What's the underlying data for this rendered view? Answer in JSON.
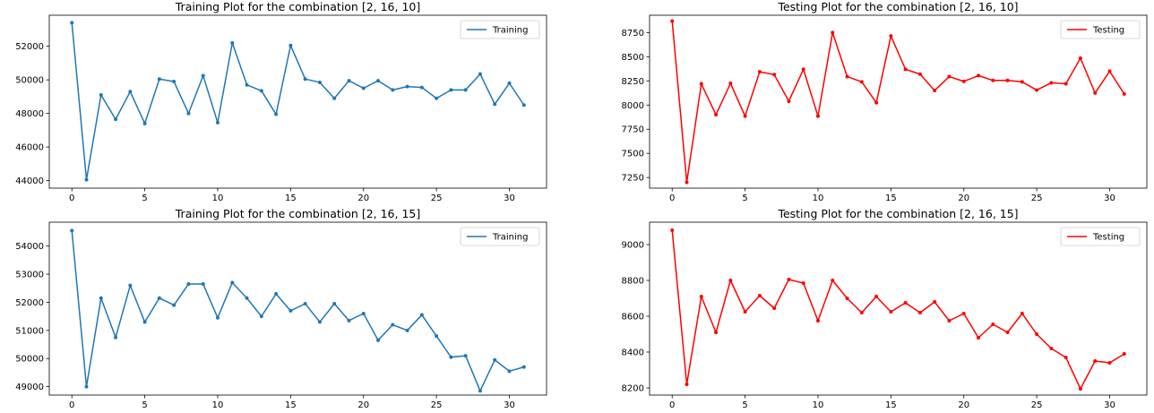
{
  "chart_data": [
    {
      "type": "line",
      "title": "Training Plot for the combination [2, 16, 10]",
      "xlabel": "",
      "ylabel": "",
      "xlim": [
        -1.55,
        32.55
      ],
      "ylim": [
        43550,
        53850
      ],
      "xticks": [
        0,
        5,
        10,
        15,
        20,
        25,
        30
      ],
      "yticks": [
        44000,
        46000,
        48000,
        50000,
        52000
      ],
      "grid": false,
      "legend_position": "upper right",
      "series": [
        {
          "name": "Training",
          "color": "#1f77b4",
          "x": [
            0,
            1,
            2,
            3,
            4,
            5,
            6,
            7,
            8,
            9,
            10,
            11,
            12,
            13,
            14,
            15,
            16,
            17,
            18,
            19,
            20,
            21,
            22,
            23,
            24,
            25,
            26,
            27,
            28,
            29,
            30,
            31
          ],
          "y": [
            53400,
            44050,
            49100,
            47650,
            49300,
            47400,
            50050,
            49900,
            48000,
            50250,
            47450,
            52200,
            49700,
            49350,
            47950,
            52050,
            50050,
            49850,
            48900,
            49950,
            49500,
            49950,
            49400,
            49600,
            49550,
            48900,
            49400,
            49400,
            50350,
            48550,
            49800,
            48500
          ]
        }
      ]
    },
    {
      "type": "line",
      "title": "Testing Plot for the combination [2, 16, 10]",
      "xlabel": "",
      "ylabel": "",
      "xlim": [
        -1.55,
        32.55
      ],
      "ylim": [
        7140,
        8930
      ],
      "xticks": [
        0,
        5,
        10,
        15,
        20,
        25,
        30
      ],
      "yticks": [
        7250,
        7500,
        7750,
        8000,
        8250,
        8500,
        8750
      ],
      "grid": false,
      "legend_position": "upper right",
      "series": [
        {
          "name": "Testing",
          "color": "#ff0000",
          "x": [
            0,
            1,
            2,
            3,
            4,
            5,
            6,
            7,
            8,
            9,
            10,
            11,
            12,
            13,
            14,
            15,
            16,
            17,
            18,
            19,
            20,
            21,
            22,
            23,
            24,
            25,
            26,
            27,
            28,
            29,
            30,
            31
          ],
          "y": [
            8870,
            7200,
            8220,
            7900,
            8225,
            7885,
            8345,
            8315,
            8040,
            8370,
            7885,
            8750,
            8295,
            8240,
            8025,
            8715,
            8370,
            8320,
            8150,
            8295,
            8245,
            8305,
            8255,
            8255,
            8240,
            8155,
            8230,
            8220,
            8485,
            8125,
            8350,
            8115
          ]
        }
      ]
    },
    {
      "type": "line",
      "title": "Training Plot for the combination [2, 16, 15]",
      "xlabel": "",
      "ylabel": "",
      "xlim": [
        -1.55,
        32.55
      ],
      "ylim": [
        48700,
        54850
      ],
      "xticks": [
        0,
        5,
        10,
        15,
        20,
        25,
        30
      ],
      "yticks": [
        49000,
        50000,
        51000,
        52000,
        53000,
        54000
      ],
      "grid": false,
      "legend_position": "upper right",
      "series": [
        {
          "name": "Training",
          "color": "#1f77b4",
          "x": [
            0,
            1,
            2,
            3,
            4,
            5,
            6,
            7,
            8,
            9,
            10,
            11,
            12,
            13,
            14,
            15,
            16,
            17,
            18,
            19,
            20,
            21,
            22,
            23,
            24,
            25,
            26,
            27,
            28,
            29,
            30,
            31
          ],
          "y": [
            54550,
            49000,
            52150,
            50750,
            52600,
            51300,
            52150,
            51900,
            52650,
            52650,
            51450,
            52700,
            52150,
            51500,
            52300,
            51700,
            51950,
            51300,
            51950,
            51350,
            51600,
            50650,
            51200,
            51000,
            51550,
            50800,
            50050,
            50100,
            48850,
            49950,
            49550,
            49700
          ]
        }
      ]
    },
    {
      "type": "line",
      "title": "Testing Plot for the combination [2, 16, 15]",
      "xlabel": "",
      "ylabel": "",
      "xlim": [
        -1.55,
        32.55
      ],
      "ylim": [
        8160,
        9125
      ],
      "xticks": [
        0,
        5,
        10,
        15,
        20,
        25,
        30
      ],
      "yticks": [
        8200,
        8400,
        8600,
        8800,
        9000
      ],
      "grid": false,
      "legend_position": "upper right",
      "series": [
        {
          "name": "Testing",
          "color": "#ff0000",
          "x": [
            0,
            1,
            2,
            3,
            4,
            5,
            6,
            7,
            8,
            9,
            10,
            11,
            12,
            13,
            14,
            15,
            16,
            17,
            18,
            19,
            20,
            21,
            22,
            23,
            24,
            25,
            26,
            27,
            28,
            29,
            30,
            31
          ],
          "y": [
            9080,
            8220,
            8710,
            8510,
            8800,
            8625,
            8715,
            8645,
            8805,
            8785,
            8575,
            8800,
            8700,
            8620,
            8710,
            8625,
            8675,
            8620,
            8680,
            8575,
            8615,
            8480,
            8555,
            8510,
            8615,
            8500,
            8420,
            8370,
            8195,
            8350,
            8340,
            8390
          ]
        }
      ]
    }
  ]
}
